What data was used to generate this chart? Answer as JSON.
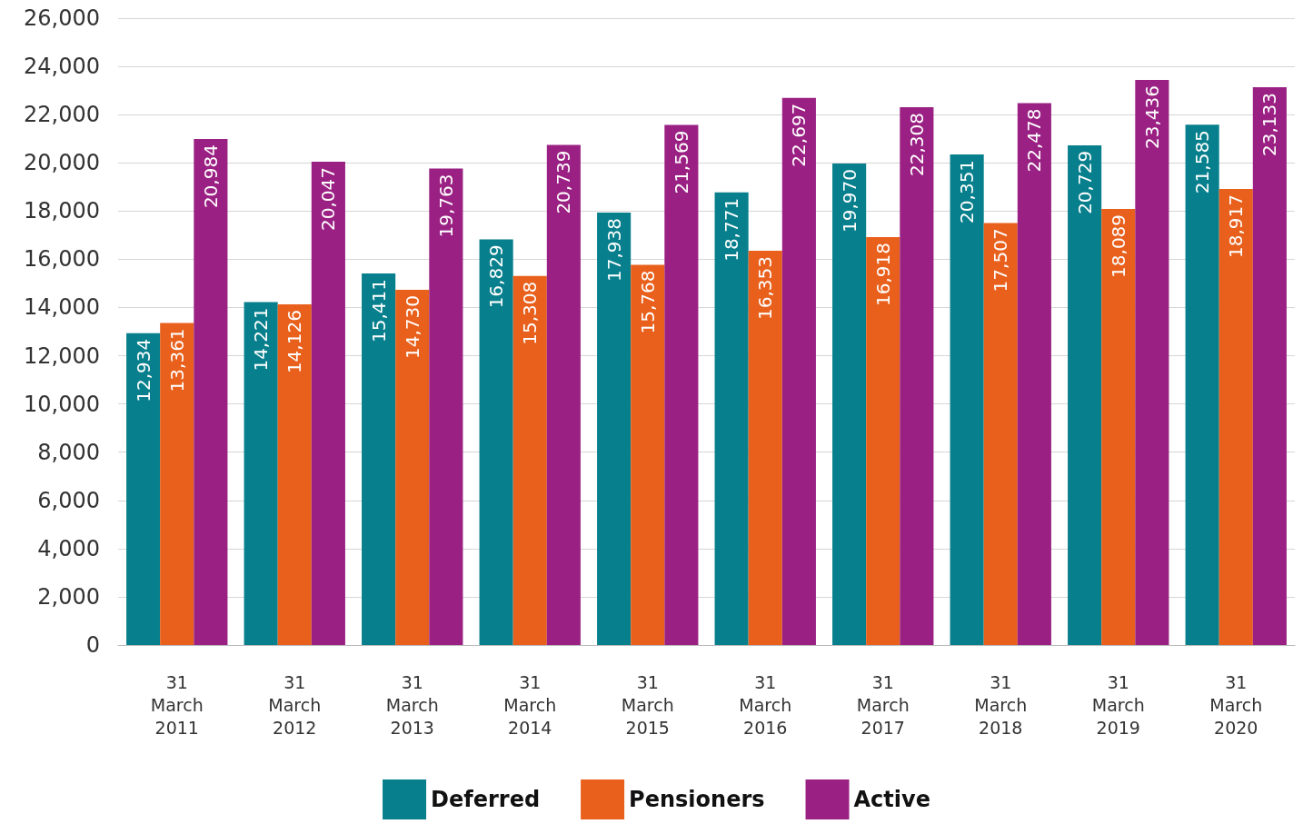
{
  "chart_data": {
    "type": "bar",
    "categories": [
      "31 March 2011",
      "31 March 2012",
      "31 March 2013",
      "31 March 2014",
      "31 March 2015",
      "31 March 2016",
      "31 March 2017",
      "31 March 2018",
      "31 March 2019",
      "31 March 2020"
    ],
    "series": [
      {
        "name": "Deferred",
        "color": "#077f8c",
        "values": [
          12934,
          14221,
          15411,
          16829,
          17938,
          18771,
          19970,
          20351,
          20729,
          21585
        ],
        "value_labels": [
          "12,934",
          "14,221",
          "15,411",
          "16,829",
          "17,938",
          "18,771",
          "19,970",
          "20,351",
          "20,729",
          "21,585"
        ]
      },
      {
        "name": "Pensioners",
        "color": "#e8601c",
        "values": [
          13361,
          14126,
          14730,
          15308,
          15768,
          16353,
          16918,
          17507,
          18089,
          18917
        ],
        "value_labels": [
          "13,361",
          "14,126",
          "14,730",
          "15,308",
          "15,768",
          "16,353",
          "16,918",
          "17,507",
          "18,089",
          "18,917"
        ]
      },
      {
        "name": "Active",
        "color": "#9a2183",
        "values": [
          20984,
          20047,
          19763,
          20739,
          21569,
          22697,
          22308,
          22478,
          23436,
          23133
        ],
        "value_labels": [
          "20,984",
          "20,047",
          "19,763",
          "20,739",
          "21,569",
          "22,697",
          "22,308",
          "22,478",
          "23,436",
          "23,133"
        ]
      }
    ],
    "ylim": [
      0,
      26000
    ],
    "yticks": [
      0,
      {
        "value": 2000,
        "label": "2,000"
      },
      {
        "value": 4000,
        "label": "4,000"
      },
      {
        "value": 6000,
        "label": "6,000"
      },
      {
        "value": 8000,
        "label": "8,000"
      },
      {
        "value": 10000,
        "label": "10,000"
      },
      {
        "value": 12000,
        "label": "12,000"
      },
      {
        "value": 14000,
        "label": "14,000"
      },
      {
        "value": 16000,
        "label": "16,000"
      },
      {
        "value": 18000,
        "label": "18,000"
      },
      {
        "value": 20000,
        "label": "20,000"
      },
      {
        "value": 22000,
        "label": "22,000"
      },
      {
        "value": 24000,
        "label": "24,000"
      },
      {
        "value": 26000,
        "label": "26,000"
      }
    ],
    "grid": "y",
    "legend": "bottom"
  }
}
